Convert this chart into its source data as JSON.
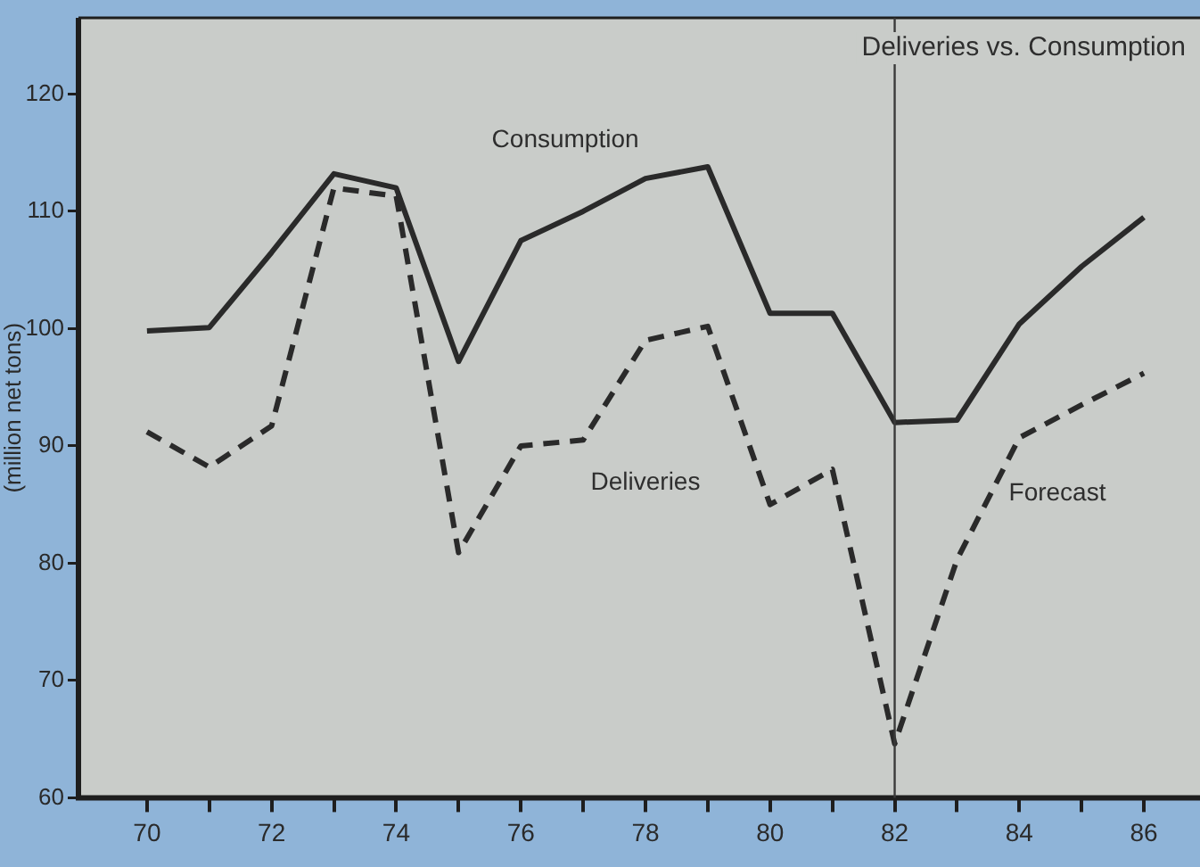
{
  "chart_data": {
    "type": "line",
    "title": "Deliveries vs. Consumption",
    "ylabel": "(million net tons)",
    "x": [
      70,
      71,
      72,
      73,
      74,
      75,
      76,
      77,
      78,
      79,
      80,
      81,
      82,
      83,
      84,
      85,
      86
    ],
    "series": [
      {
        "name": "Consumption",
        "color": "#2a2a2a",
        "line_style": "solid",
        "values": [
          99.8,
          100.1,
          106.5,
          113.2,
          112,
          97.2,
          107.5,
          110,
          112.8,
          113.8,
          101.3,
          101.3,
          92,
          92.2,
          100.4,
          105.3,
          109.5
        ]
      },
      {
        "name": "Deliveries",
        "color": "#2a2a2a",
        "line_style": "dashed",
        "values": [
          91.2,
          88.2,
          91.7,
          112,
          111.3,
          80.9,
          90,
          90.5,
          99,
          100.2,
          85,
          88,
          64.6,
          80.3,
          90.7,
          93.5,
          96.2
        ]
      }
    ],
    "xlim": [
      68.9,
      86.9
    ],
    "xticks": [
      70,
      {
        "value": 71,
        "label": null
      },
      72,
      {
        "value": 73,
        "label": null
      },
      74,
      {
        "value": 75,
        "label": null
      },
      76,
      {
        "value": 77,
        "label": null
      },
      78,
      {
        "value": 79,
        "label": null
      },
      80,
      {
        "value": 81,
        "label": null
      },
      82,
      {
        "value": 83,
        "label": null
      },
      84,
      {
        "value": 85,
        "label": null
      },
      86
    ],
    "ylim": [
      60,
      126.5
    ],
    "yticks": [
      60,
      70,
      80,
      90,
      100,
      110,
      120
    ],
    "ref_lines": [
      {
        "axis": "x",
        "value": 82,
        "color": "#3a3a3a"
      }
    ],
    "annotations": [
      "Forecast"
    ],
    "grid": false,
    "legend": false,
    "marker": "none"
  }
}
